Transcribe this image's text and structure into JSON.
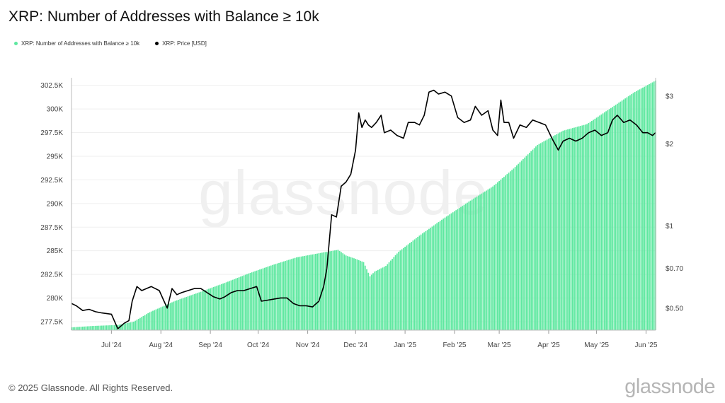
{
  "title": "XRP: Number of Addresses with Balance ≥ 10k",
  "legend": [
    {
      "label": "XRP: Number of Addresses with Balance ≥ 10k",
      "color": "#5ee8a0"
    },
    {
      "label": "XRP: Price [USD]",
      "color": "#000000"
    }
  ],
  "watermark": "glassnode",
  "footer": {
    "copyright": "© 2025 Glassnode. All Rights Reserved.",
    "logo": "glassnode"
  },
  "colors": {
    "area": "#5ee8a0",
    "price": "#000000",
    "grid": "#efefef",
    "axis": "#888888"
  },
  "chart_data": {
    "type": "bar",
    "x_labels": [
      "Jul '24",
      "Aug '24",
      "Sep '24",
      "Oct '24",
      "Nov '24",
      "Dec '24",
      "Jan '25",
      "Feb '25",
      "Mar '25",
      "Apr '25",
      "May '25",
      "Jun '25"
    ],
    "x_range": [
      "2024-06-06",
      "2025-06-07"
    ],
    "y_left": {
      "ticks": [
        "277.5K",
        "280K",
        "282.5K",
        "285K",
        "287.5K",
        "290K",
        "292.5K",
        "295K",
        "297.5K",
        "300K",
        "302.5K"
      ],
      "tick_values": [
        277500,
        280000,
        282500,
        285000,
        287500,
        290000,
        292500,
        295000,
        297500,
        300000,
        302500
      ],
      "range": [
        276600,
        303300
      ]
    },
    "y_right": {
      "ticks": [
        "$0.50",
        "$0.70",
        "$1",
        "$2",
        "$3"
      ],
      "tick_values": [
        0.5,
        0.7,
        1,
        2,
        3
      ],
      "range": [
        0.415,
        3.5
      ],
      "scale": "log"
    },
    "series": [
      {
        "name": "XRP: Number of Addresses with Balance ≥ 10k",
        "kind": "area",
        "points": [
          [
            "2024-06-06",
            276900
          ],
          [
            "2024-06-20",
            277050
          ],
          [
            "2024-07-05",
            277150
          ],
          [
            "2024-07-15",
            277500
          ],
          [
            "2024-07-25",
            278500
          ],
          [
            "2024-08-10",
            279700
          ],
          [
            "2024-08-25",
            280600
          ],
          [
            "2024-09-10",
            281600
          ],
          [
            "2024-09-25",
            282600
          ],
          [
            "2024-10-10",
            283500
          ],
          [
            "2024-10-25",
            284300
          ],
          [
            "2024-11-10",
            284800
          ],
          [
            "2024-11-20",
            285100
          ],
          [
            "2024-11-25",
            284500
          ],
          [
            "2024-12-01",
            284150
          ],
          [
            "2024-12-06",
            283800
          ],
          [
            "2024-12-10",
            282300
          ],
          [
            "2024-12-13",
            282800
          ],
          [
            "2024-12-20",
            283400
          ],
          [
            "2024-12-28",
            284900
          ],
          [
            "2025-01-10",
            286600
          ],
          [
            "2025-01-25",
            288400
          ],
          [
            "2025-02-10",
            290200
          ],
          [
            "2025-02-25",
            291800
          ],
          [
            "2025-03-10",
            293700
          ],
          [
            "2025-03-25",
            296200
          ],
          [
            "2025-04-10",
            297700
          ],
          [
            "2025-04-25",
            298400
          ],
          [
            "2025-05-10",
            300100
          ],
          [
            "2025-05-25",
            301800
          ],
          [
            "2025-06-07",
            303000
          ]
        ]
      },
      {
        "name": "XRP: Price [USD]",
        "kind": "line",
        "points": [
          [
            "2024-06-06",
            0.52
          ],
          [
            "2024-06-09",
            0.51
          ],
          [
            "2024-06-13",
            0.49
          ],
          [
            "2024-06-17",
            0.495
          ],
          [
            "2024-06-21",
            0.485
          ],
          [
            "2024-06-25",
            0.48
          ],
          [
            "2024-07-01",
            0.475
          ],
          [
            "2024-07-05",
            0.42
          ],
          [
            "2024-07-09",
            0.44
          ],
          [
            "2024-07-12",
            0.45
          ],
          [
            "2024-07-14",
            0.53
          ],
          [
            "2024-07-17",
            0.6
          ],
          [
            "2024-07-20",
            0.58
          ],
          [
            "2024-07-23",
            0.59
          ],
          [
            "2024-07-26",
            0.6
          ],
          [
            "2024-07-31",
            0.58
          ],
          [
            "2024-08-03",
            0.53
          ],
          [
            "2024-08-05",
            0.5
          ],
          [
            "2024-08-08",
            0.59
          ],
          [
            "2024-08-11",
            0.56
          ],
          [
            "2024-08-14",
            0.57
          ],
          [
            "2024-08-18",
            0.58
          ],
          [
            "2024-08-22",
            0.59
          ],
          [
            "2024-08-26",
            0.59
          ],
          [
            "2024-08-30",
            0.57
          ],
          [
            "2024-09-03",
            0.55
          ],
          [
            "2024-09-07",
            0.54
          ],
          [
            "2024-09-10",
            0.55
          ],
          [
            "2024-09-14",
            0.57
          ],
          [
            "2024-09-18",
            0.58
          ],
          [
            "2024-09-22",
            0.58
          ],
          [
            "2024-09-26",
            0.59
          ],
          [
            "2024-09-30",
            0.6
          ],
          [
            "2024-10-03",
            0.53
          ],
          [
            "2024-10-07",
            0.535
          ],
          [
            "2024-10-11",
            0.54
          ],
          [
            "2024-10-15",
            0.545
          ],
          [
            "2024-10-19",
            0.545
          ],
          [
            "2024-10-23",
            0.52
          ],
          [
            "2024-10-27",
            0.51
          ],
          [
            "2024-10-31",
            0.51
          ],
          [
            "2024-11-04",
            0.505
          ],
          [
            "2024-11-08",
            0.53
          ],
          [
            "2024-11-11",
            0.6
          ],
          [
            "2024-11-13",
            0.7
          ],
          [
            "2024-11-16",
            1.1
          ],
          [
            "2024-11-19",
            1.08
          ],
          [
            "2024-11-22",
            1.4
          ],
          [
            "2024-11-25",
            1.45
          ],
          [
            "2024-11-28",
            1.55
          ],
          [
            "2024-12-01",
            1.9
          ],
          [
            "2024-12-03",
            2.6
          ],
          [
            "2024-12-05",
            2.3
          ],
          [
            "2024-12-07",
            2.45
          ],
          [
            "2024-12-09",
            2.35
          ],
          [
            "2024-12-11",
            2.3
          ],
          [
            "2024-12-14",
            2.4
          ],
          [
            "2024-12-17",
            2.55
          ],
          [
            "2024-12-19",
            2.2
          ],
          [
            "2024-12-23",
            2.25
          ],
          [
            "2024-12-27",
            2.15
          ],
          [
            "2024-12-31",
            2.1
          ],
          [
            "2025-01-03",
            2.4
          ],
          [
            "2025-01-07",
            2.4
          ],
          [
            "2025-01-10",
            2.35
          ],
          [
            "2025-01-13",
            2.55
          ],
          [
            "2025-01-16",
            3.1
          ],
          [
            "2025-01-19",
            3.15
          ],
          [
            "2025-01-22",
            3.05
          ],
          [
            "2025-01-26",
            3.1
          ],
          [
            "2025-01-30",
            3.0
          ],
          [
            "2025-02-03",
            2.5
          ],
          [
            "2025-02-07",
            2.4
          ],
          [
            "2025-02-11",
            2.45
          ],
          [
            "2025-02-14",
            2.75
          ],
          [
            "2025-02-18",
            2.55
          ],
          [
            "2025-02-22",
            2.65
          ],
          [
            "2025-02-25",
            2.25
          ],
          [
            "2025-02-28",
            2.15
          ],
          [
            "2025-03-02",
            2.9
          ],
          [
            "2025-03-04",
            2.4
          ],
          [
            "2025-03-07",
            2.4
          ],
          [
            "2025-03-10",
            2.1
          ],
          [
            "2025-03-14",
            2.35
          ],
          [
            "2025-03-18",
            2.3
          ],
          [
            "2025-03-22",
            2.45
          ],
          [
            "2025-03-26",
            2.4
          ],
          [
            "2025-03-30",
            2.35
          ],
          [
            "2025-04-03",
            2.1
          ],
          [
            "2025-04-07",
            1.9
          ],
          [
            "2025-04-10",
            2.05
          ],
          [
            "2025-04-14",
            2.1
          ],
          [
            "2025-04-18",
            2.05
          ],
          [
            "2025-04-22",
            2.1
          ],
          [
            "2025-04-26",
            2.2
          ],
          [
            "2025-04-30",
            2.25
          ],
          [
            "2025-05-04",
            2.15
          ],
          [
            "2025-05-08",
            2.2
          ],
          [
            "2025-05-11",
            2.45
          ],
          [
            "2025-05-14",
            2.55
          ],
          [
            "2025-05-18",
            2.4
          ],
          [
            "2025-05-22",
            2.45
          ],
          [
            "2025-05-26",
            2.35
          ],
          [
            "2025-05-30",
            2.2
          ],
          [
            "2025-06-02",
            2.2
          ],
          [
            "2025-06-05",
            2.15
          ],
          [
            "2025-06-07",
            2.2
          ]
        ]
      }
    ]
  }
}
